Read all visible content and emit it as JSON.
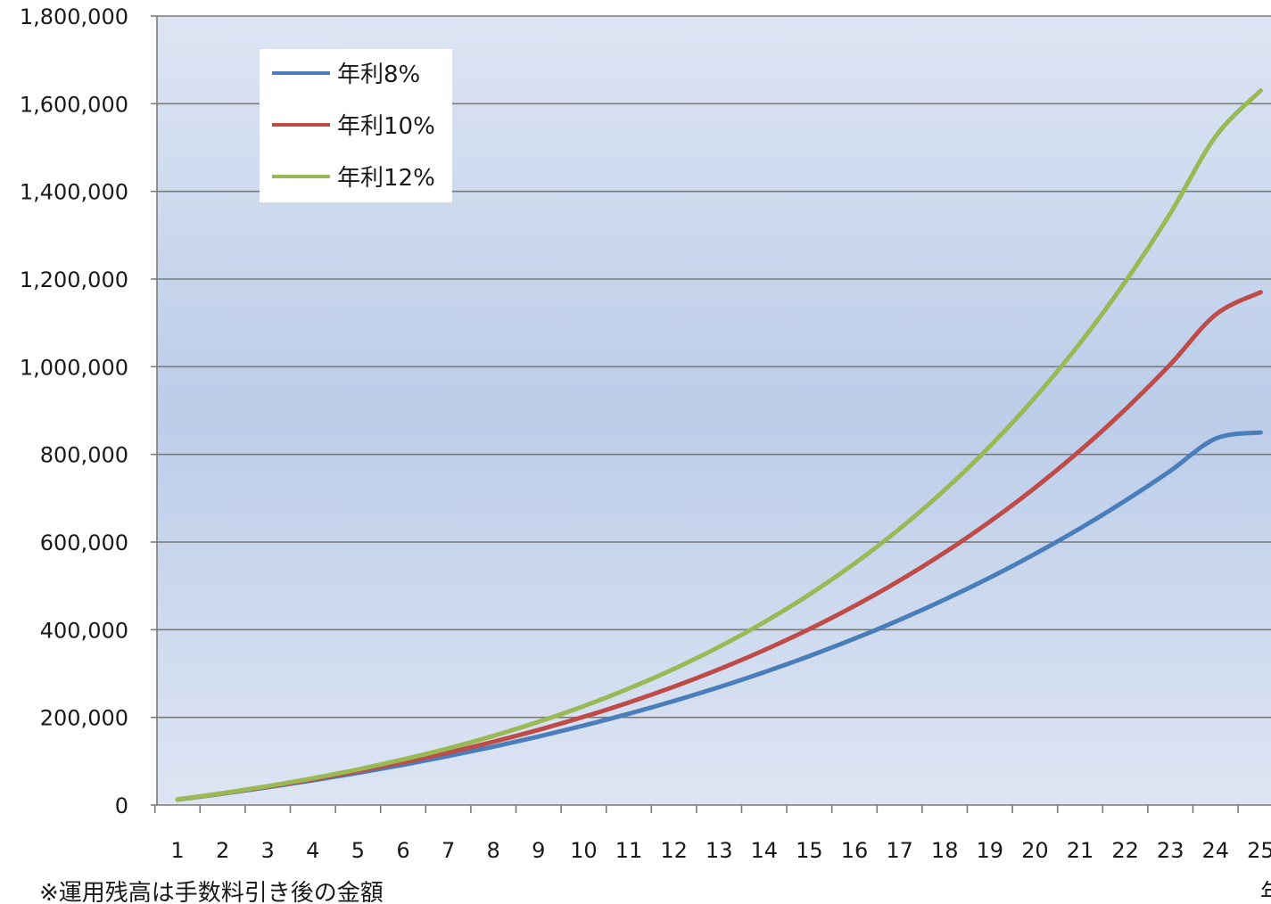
{
  "chart_data": {
    "type": "line",
    "x": [
      1,
      2,
      3,
      4,
      5,
      6,
      7,
      8,
      9,
      10,
      11,
      12,
      13,
      14,
      15,
      16,
      17,
      18,
      19,
      20,
      21,
      22,
      23,
      24,
      25
    ],
    "x_tick_labels": [
      "1",
      "2",
      "3",
      "4",
      "5",
      "6",
      "7",
      "8",
      "9",
      "10",
      "11",
      "12",
      "13",
      "14",
      "15",
      "16",
      "17",
      "18",
      "19",
      "20",
      "21",
      "22",
      "23",
      "24",
      "25"
    ],
    "ylim": [
      0,
      1800000
    ],
    "y_tick_labels": [
      "0",
      "200,000",
      "400,000",
      "600,000",
      "800,000",
      "1,000,000",
      "1,200,000",
      "1,400,000",
      "1,600,000",
      "1,800,000"
    ],
    "grid": true,
    "legend_position": "top-left",
    "series": [
      {
        "name": "年利8%",
        "color": "#4a7ebb",
        "values": [
          12500,
          26000,
          40600,
          56400,
          73400,
          91800,
          111700,
          133100,
          156300,
          181300,
          208300,
          237500,
          269000,
          303100,
          339900,
          379600,
          422500,
          468900,
          518900,
          572900,
          631300,
          694300,
          762400,
          835900,
          850000
        ]
      },
      {
        "name": "年利10%",
        "color": "#be4b48",
        "values": [
          12600,
          26500,
          41800,
          58600,
          77100,
          97500,
          119800,
          144400,
          171500,
          201300,
          234000,
          270100,
          309800,
          353400,
          401400,
          454200,
          512300,
          576200,
          646500,
          723800,
          808900,
          902500,
          1005400,
          1118600,
          1170000
        ]
      },
      {
        "name": "年利12%",
        "color": "#98b954",
        "values": [
          12700,
          27000,
          43100,
          61100,
          81300,
          104000,
          129300,
          157800,
          189800,
          225600,
          265700,
          310600,
          360900,
          417200,
          480300,
          551000,
          630200,
          718900,
          818300,
          929500,
          1054100,
          1193700,
          1350000,
          1525100,
          1630000
        ]
      }
    ],
    "footnote": "※運用残高は手数料引き後の金額",
    "edge_fragment": "年"
  }
}
